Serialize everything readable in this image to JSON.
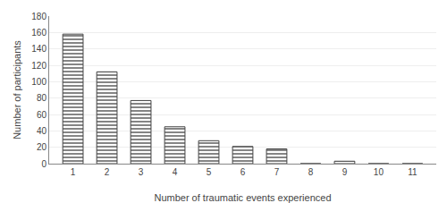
{
  "chart_data": {
    "type": "bar",
    "x": [
      1,
      2,
      3,
      4,
      5,
      6,
      7,
      8,
      9,
      10,
      11
    ],
    "values": [
      158,
      112,
      77,
      45,
      28,
      21,
      18,
      0,
      3,
      0,
      0
    ],
    "color": "#ffffff",
    "xlabel": "Number of traumatic events experienced",
    "ylabel": "Number of participants",
    "xlim": [
      0.3,
      11.7
    ],
    "xticks": [
      1,
      2,
      3,
      4,
      5,
      6,
      7,
      8,
      9,
      10,
      11
    ],
    "ylim": [
      0,
      180
    ],
    "yticks": [
      0,
      20,
      40,
      60,
      80,
      100,
      120,
      140,
      160,
      180
    ],
    "grid": true
  }
}
